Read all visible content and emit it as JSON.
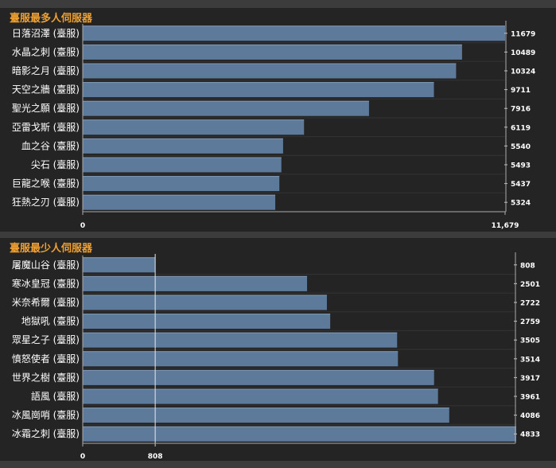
{
  "chart_data": [
    {
      "type": "bar",
      "orientation": "horizontal",
      "title": "臺服最多人伺服器",
      "categories": [
        "日落沼澤 (臺服)",
        "水晶之刺 (臺服)",
        "暗影之月 (臺服)",
        "天空之牆 (臺服)",
        "聖光之願 (臺服)",
        "亞雷戈斯 (臺服)",
        "血之谷 (臺服)",
        "尖石 (臺服)",
        "巨龍之喉 (臺服)",
        "狂熱之刃 (臺服)"
      ],
      "values": [
        11679,
        10489,
        10324,
        9711,
        7916,
        6119,
        5540,
        5493,
        5437,
        5324
      ],
      "value_labels": [
        "11679",
        "10489",
        "10324",
        "9711",
        "7916",
        "6119",
        "5540",
        "5493",
        "5437",
        "5324"
      ],
      "xlim": [
        0,
        11679
      ],
      "x_ticks": [
        0,
        11679
      ],
      "x_tick_labels": [
        "0",
        "11,679"
      ],
      "reference_line": null,
      "bar_color": "#5e7a9a",
      "label_color": "#ffffff",
      "title_color": "#f0a030"
    },
    {
      "type": "bar",
      "orientation": "horizontal",
      "title": "臺服最少人伺服器",
      "categories": [
        "屠魔山谷 (臺服)",
        "寒冰皇冠 (臺服)",
        "米奈希爾 (臺服)",
        "地獄吼 (臺服)",
        "眾星之子 (臺服)",
        "憤怒使者 (臺服)",
        "世界之樹 (臺服)",
        "語風 (臺服)",
        "冰風崗哨 (臺服)",
        "冰霜之刺 (臺服)"
      ],
      "values": [
        808,
        2501,
        2722,
        2759,
        3505,
        3514,
        3917,
        3961,
        4086,
        4833
      ],
      "value_labels": [
        "808",
        "2501",
        "2722",
        "2759",
        "3505",
        "3514",
        "3917",
        "3961",
        "4086",
        "4833"
      ],
      "xlim": [
        0,
        4833
      ],
      "x_ticks": [
        0,
        808
      ],
      "x_tick_labels": [
        "0",
        "808"
      ],
      "reference_line": 808,
      "bar_color": "#5e7a9a",
      "label_color": "#ffffff",
      "title_color": "#f0a030"
    }
  ]
}
